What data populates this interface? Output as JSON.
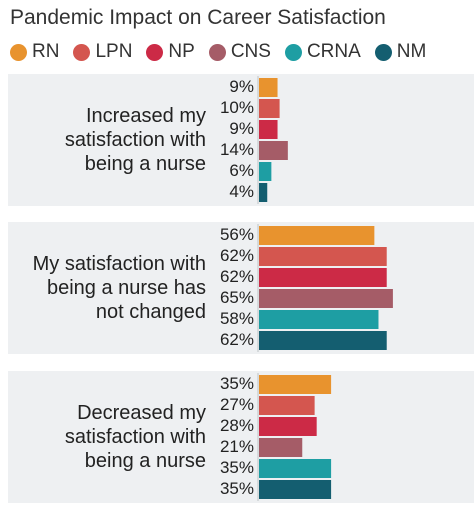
{
  "chart_data": {
    "type": "bar",
    "orientation": "horizontal",
    "title": "Pandemic Impact on Career Satisfaction",
    "legend_position": "top",
    "series": [
      {
        "name": "RN",
        "color": "#e8932e",
        "values": [
          9,
          56,
          35
        ]
      },
      {
        "name": "LPN",
        "color": "#d4564f",
        "values": [
          10,
          62,
          27
        ]
      },
      {
        "name": "NP",
        "color": "#cc2a46",
        "values": [
          9,
          62,
          28
        ]
      },
      {
        "name": "CNS",
        "color": "#a55c67",
        "values": [
          14,
          65,
          21
        ]
      },
      {
        "name": "CRNA",
        "color": "#1e9ea3",
        "values": [
          6,
          58,
          35
        ]
      },
      {
        "name": "NM",
        "color": "#145e70",
        "values": [
          4,
          62,
          35
        ]
      }
    ],
    "categories": [
      "Increased my satisfaction with being a nurse",
      "My satisfaction with being a nurse has not changed",
      "Decreased my satisfaction with being a nurse"
    ],
    "category_lines": [
      [
        "Increased my",
        "satisfaction with",
        "being a nurse"
      ],
      [
        "My satisfaction with",
        "being a nurse has",
        "not changed"
      ],
      [
        "Decreased my",
        "satisfaction with",
        "being a nurse"
      ]
    ],
    "value_suffix": "%",
    "xlim": [
      0,
      70
    ],
    "grid": false
  }
}
